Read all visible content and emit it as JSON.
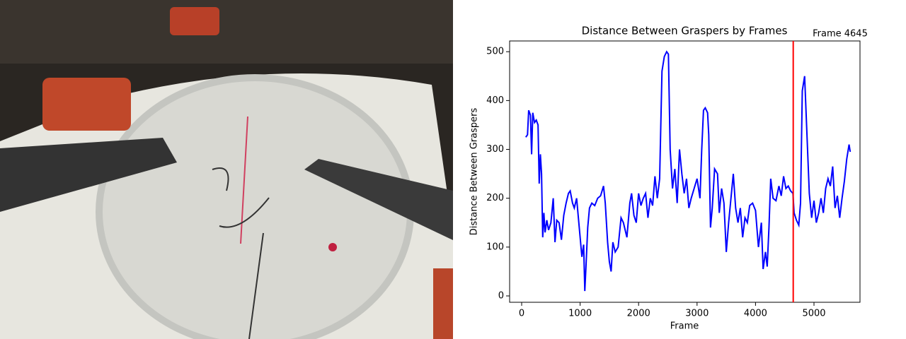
{
  "chart_data": {
    "type": "line",
    "title": "Distance Between Graspers by Frames",
    "xlabel": "Frame",
    "ylabel": "Distance Between Graspers",
    "x": [
      70,
      100,
      120,
      150,
      170,
      190,
      220,
      250,
      280,
      300,
      320,
      340,
      360,
      380,
      400,
      430,
      460,
      500,
      540,
      570,
      600,
      640,
      680,
      720,
      760,
      800,
      830,
      870,
      900,
      940,
      970,
      1000,
      1030,
      1060,
      1080,
      1100,
      1130,
      1160,
      1200,
      1250,
      1300,
      1350,
      1400,
      1430,
      1470,
      1500,
      1530,
      1560,
      1600,
      1650,
      1700,
      1740,
      1800,
      1850,
      1880,
      1920,
      1960,
      2000,
      2040,
      2080,
      2120,
      2160,
      2200,
      2240,
      2280,
      2320,
      2360,
      2400,
      2440,
      2480,
      2510,
      2540,
      2580,
      2620,
      2660,
      2700,
      2740,
      2780,
      2820,
      2860,
      2900,
      2950,
      3000,
      3050,
      3080,
      3110,
      3140,
      3180,
      3200,
      3230,
      3260,
      3300,
      3350,
      3380,
      3420,
      3460,
      3500,
      3540,
      3580,
      3620,
      3660,
      3700,
      3740,
      3780,
      3820,
      3860,
      3900,
      3950,
      4000,
      4050,
      4100,
      4130,
      4170,
      4200,
      4230,
      4260,
      4300,
      4350,
      4400,
      4440,
      4480,
      4520,
      4560,
      4600,
      4640,
      4660,
      4700,
      4740,
      4770,
      4800,
      4840,
      4880,
      4920,
      4960,
      5000,
      5040,
      5080,
      5120,
      5160,
      5200,
      5240,
      5280,
      5320,
      5360,
      5400,
      5440,
      5480,
      5520,
      5560,
      5600,
      5620
    ],
    "series": [
      {
        "color": "#0000ff",
        "values": [
          325,
          330,
          380,
          370,
          290,
          375,
          355,
          360,
          350,
          230,
          290,
          250,
          120,
          170,
          130,
          155,
          135,
          150,
          200,
          110,
          155,
          150,
          115,
          165,
          190,
          210,
          215,
          190,
          180,
          200,
          160,
          120,
          80,
          105,
          10,
          60,
          140,
          180,
          190,
          185,
          200,
          205,
          225,
          190,
          110,
          70,
          50,
          110,
          90,
          100,
          160,
          150,
          120,
          190,
          210,
          165,
          150,
          210,
          185,
          200,
          210,
          160,
          200,
          185,
          245,
          200,
          240,
          460,
          490,
          500,
          495,
          300,
          220,
          260,
          190,
          300,
          250,
          210,
          240,
          180,
          200,
          220,
          240,
          200,
          300,
          380,
          385,
          375,
          330,
          140,
          180,
          260,
          250,
          170,
          220,
          190,
          90,
          150,
          200,
          250,
          180,
          150,
          180,
          120,
          160,
          150,
          185,
          190,
          175,
          100,
          150,
          55,
          90,
          60,
          140,
          240,
          200,
          195,
          225,
          205,
          245,
          220,
          225,
          215,
          210,
          170,
          155,
          145,
          190,
          420,
          450,
          330,
          210,
          160,
          195,
          150,
          170,
          200,
          170,
          220,
          240,
          225,
          265,
          180,
          205,
          160,
          200,
          235,
          280,
          310,
          295
        ]
      }
    ],
    "vline": {
      "value": 4645,
      "label": "Frame 4645",
      "color": "#ff0000"
    },
    "xlim": [
      -206,
      5787
    ],
    "ylim": [
      -13,
      522
    ],
    "xticks": [
      0,
      1000,
      2000,
      3000,
      4000,
      5000
    ],
    "yticks": [
      0,
      100,
      200,
      300,
      400,
      500
    ]
  }
}
